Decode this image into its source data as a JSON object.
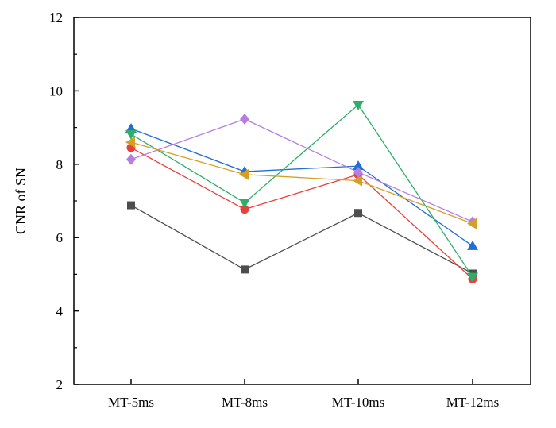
{
  "chart_data": {
    "type": "line",
    "categories": [
      "MT-5ms",
      "MT-8ms",
      "MT-10ms",
      "MT-12ms"
    ],
    "ylabel": "CNR of SN",
    "xlabel": "",
    "title": "",
    "ylim": [
      2,
      12
    ],
    "yticks": [
      2,
      4,
      6,
      8,
      10,
      12
    ],
    "grid": false,
    "legend": "none",
    "series": [
      {
        "color": "#4d4d4d",
        "marker": "square",
        "values": [
          6.88,
          5.13,
          6.67,
          5.02
        ]
      },
      {
        "color": "#e8413c",
        "marker": "circle",
        "values": [
          8.45,
          6.77,
          7.72,
          4.87
        ]
      },
      {
        "color": "#1f6fd6",
        "marker": "triangle-up",
        "values": [
          8.97,
          7.8,
          7.95,
          5.77
        ]
      },
      {
        "color": "#2fae6a",
        "marker": "triangle-down",
        "values": [
          8.82,
          6.95,
          9.62,
          4.93
        ]
      },
      {
        "color": "#b57ee0",
        "marker": "diamond",
        "values": [
          8.13,
          9.23,
          7.78,
          6.43
        ]
      },
      {
        "color": "#d4a020",
        "marker": "triangle-left",
        "values": [
          8.6,
          7.72,
          7.55,
          6.38
        ]
      }
    ]
  }
}
